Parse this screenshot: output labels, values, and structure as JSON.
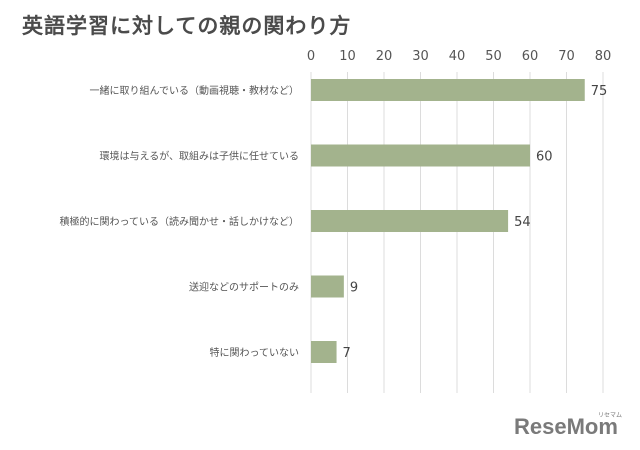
{
  "chart_data": {
    "type": "bar",
    "orientation": "horizontal",
    "title": "英語学習に対しての親の関わり方",
    "categories": [
      "一緒に取り組んでいる（動画視聴・教材など）",
      "環境は与えるが、取組みは子供に任せている",
      "積極的に関わっている（読み聞かせ・話しかけなど）",
      "送迎などのサポートのみ",
      "特に関わっていない"
    ],
    "values": [
      75,
      60,
      54,
      9,
      7
    ],
    "xlim": [
      0,
      80
    ],
    "ticks": [
      0,
      10,
      20,
      30,
      40,
      50,
      60,
      70,
      80
    ],
    "grid": true,
    "legend": "none",
    "bar_color": "#a3b38d",
    "grid_color": "#dcdcdc"
  },
  "brand": {
    "logo_text": "ReseMom",
    "logo_ruby": "リセマム",
    "logo_color": "#7a7a7a"
  }
}
